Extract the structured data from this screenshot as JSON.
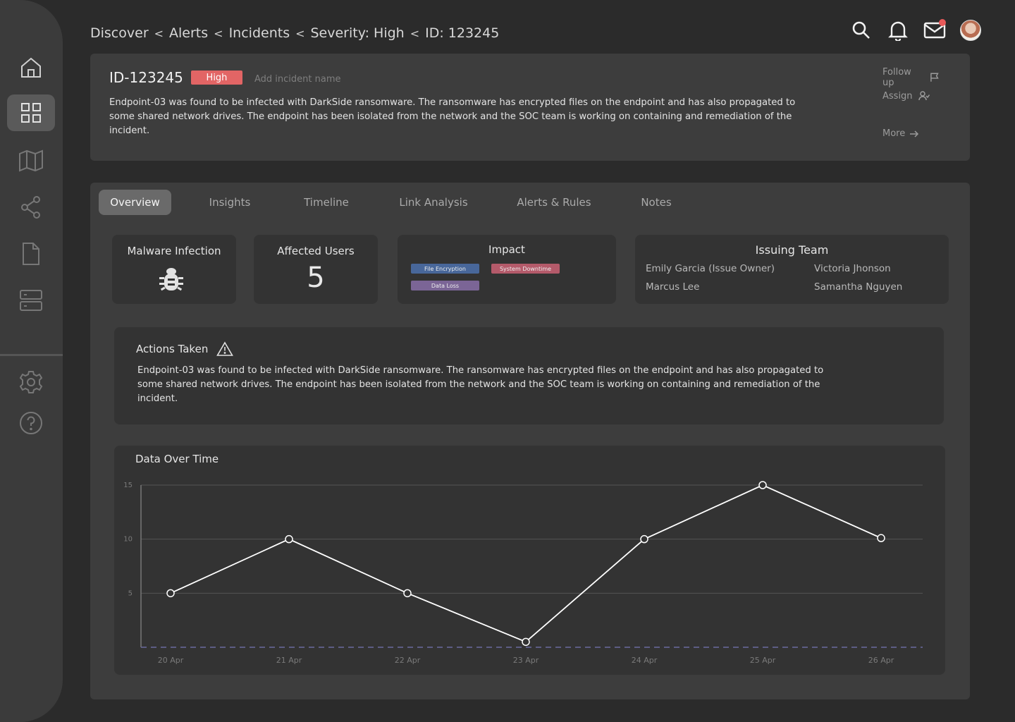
{
  "breadcrumb": [
    "Discover",
    "Alerts",
    "Incidents",
    "Severity: High",
    "ID: 123245"
  ],
  "breadcrumb_separator": "<",
  "incident": {
    "id": "ID-123245",
    "severity": "High",
    "severity_color": "#e26565",
    "name_placeholder": "Add incident name",
    "description": "Endpoint-03 was found to be infected with DarkSide ransomware. The ransomware has encrypted files on the endpoint and has also propagated to some shared network drives. The endpoint has been isolated from the network and the SOC team is working on containing and remediation of the incident.",
    "follow_up_label": "Follow up",
    "assign_label": "Assign",
    "more_label": "More"
  },
  "tabs": [
    {
      "label": "Overview",
      "active": true
    },
    {
      "label": "Insights",
      "active": false
    },
    {
      "label": "Timeline",
      "active": false
    },
    {
      "label": "Link Analysis",
      "active": false
    },
    {
      "label": "Alerts & Rules",
      "active": false
    },
    {
      "label": "Notes",
      "active": false
    }
  ],
  "overview": {
    "malware": {
      "title": "Malware Infection",
      "icon": "bug-icon"
    },
    "affected_users": {
      "title": "Affected Users",
      "count": "5"
    },
    "impact": {
      "title": "Impact",
      "tags": [
        {
          "label": "File Encryption",
          "color": "#48679a"
        },
        {
          "label": "System Downtime",
          "color": "#b45a6a"
        },
        {
          "label": "Data Loss",
          "color": "#7b6596"
        }
      ]
    },
    "team": {
      "title": "Issuing Team",
      "members": [
        "Emily Garcia (Issue Owner)",
        "Victoria Jhonson",
        "Marcus Lee",
        "Samantha Nguyen"
      ]
    }
  },
  "actions_taken": {
    "title": "Actions Taken",
    "icon": "warning-icon",
    "description": "Endpoint-03 was found to be infected with DarkSide ransomware. The ransomware has encrypted files on the endpoint and has also propagated to some shared network drives. The endpoint has been isolated from the network and the SOC team is working on containing and remediation of the incident."
  },
  "sidebar": {
    "items": [
      "home-icon",
      "dashboard-icon",
      "map-icon",
      "share-icon",
      "file-icon",
      "server-icon"
    ],
    "bottom_items": [
      "settings-icon",
      "help-icon"
    ],
    "active_item": "dashboard-icon"
  },
  "header_icons": [
    "search-icon",
    "bell-icon",
    "mail-icon",
    "avatar"
  ],
  "chart_data": {
    "type": "line",
    "title": "Data Over Time",
    "categories": [
      "20 Apr",
      "21 Apr",
      "22 Apr",
      "23 Apr",
      "24 Apr",
      "25 Apr",
      "26 Apr"
    ],
    "series": [
      {
        "values": [
          5,
          10,
          5,
          0.5,
          10,
          15,
          10.1
        ]
      }
    ],
    "yticks": [
      "5",
      "10",
      "15"
    ],
    "ylim": [
      0,
      15
    ],
    "grid": true,
    "line_color": "#ffffff",
    "baseline_color": "#6b6aa0"
  }
}
